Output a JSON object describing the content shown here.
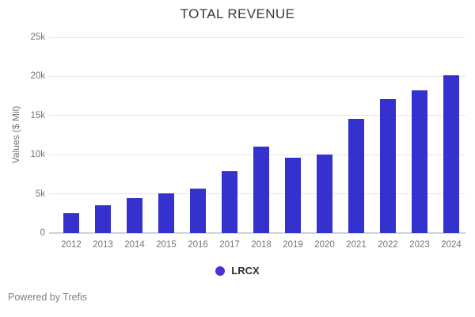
{
  "chart_data": {
    "type": "bar",
    "title": "TOTAL REVENUE",
    "categories": [
      "2012",
      "2013",
      "2014",
      "2015",
      "2016",
      "2017",
      "2018",
      "2019",
      "2020",
      "2021",
      "2022",
      "2023",
      "2024"
    ],
    "series": [
      {
        "name": "LRCX",
        "values": [
          2500,
          3500,
          4500,
          5100,
          5700,
          7900,
          11000,
          9600,
          10050,
          14550,
          17150,
          18200,
          20100
        ]
      }
    ],
    "xlabel": "",
    "ylabel": "Values ($ Mil)",
    "ylim": [
      0,
      25000
    ],
    "ytick_values": [
      0,
      5000,
      10000,
      15000,
      20000,
      25000
    ],
    "ytick_labels": [
      "0",
      "5k",
      "10k",
      "15k",
      "20k",
      "25k"
    ],
    "grid": true,
    "legend_position": "bottom"
  },
  "legend": {
    "items": [
      {
        "label": "LRCX",
        "color": "#4335d8"
      }
    ]
  },
  "footer": {
    "text": "Powered by Trefis"
  },
  "colors": {
    "background": "#ffffff",
    "bar": "#3431ce",
    "gridline": "#e6e6e6",
    "baseline": "#ccd3e0",
    "title_text": "#3a3a3a",
    "axis_text": "#757575",
    "legend_text": "#2f2f2f",
    "footer_text": "#7f7f7f"
  }
}
